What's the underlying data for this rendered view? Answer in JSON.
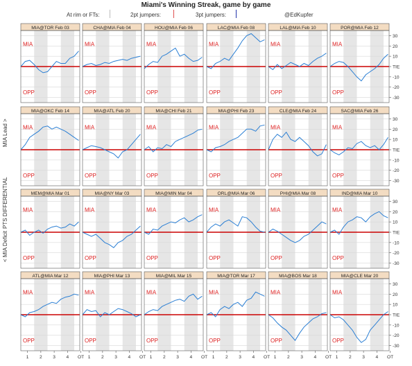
{
  "header": {
    "title": "Miami's Winning Streak, game by game",
    "legend": [
      {
        "label": "At rim or FTs:",
        "mark_color": "#bbbbbb"
      },
      {
        "label": "2pt jumpers:",
        "mark_color": "#e05050"
      },
      {
        "label": "3pt jumpers:",
        "mark_color": "#2233aa"
      }
    ],
    "credit": "@EdKupfer"
  },
  "ylabels": {
    "lead": "MIA Lead >",
    "differential": "PTS DIFFERENTIAL",
    "deficit": "< MIA Deficit"
  },
  "chart_data": {
    "type": "line",
    "panel_labels": {
      "team": "MIA",
      "opponent": "OPP",
      "tie": "TIE"
    },
    "y_ticks": [
      30,
      20,
      10,
      0,
      -10,
      -20,
      -30
    ],
    "y_tick_labels": [
      "30",
      "20",
      "10",
      "TIE",
      "-10",
      "-20",
      "-30"
    ],
    "x_tick_labels": [
      "1",
      "2",
      "3",
      "4",
      "OT"
    ],
    "ylim": [
      -35,
      35
    ],
    "xlim": [
      0,
      53
    ],
    "line_color": "#2b7fd4",
    "tie_line_color": "#cc0000",
    "shaded_quarters": [
      2,
      4
    ],
    "games": [
      {
        "title": "MIA@TOR Feb 03",
        "x": [
          0,
          4,
          8,
          12,
          16,
          20,
          24,
          28,
          32,
          36,
          40,
          44,
          48,
          52
        ],
        "y": [
          0,
          5,
          6,
          2,
          -3,
          -6,
          -5,
          0,
          5,
          3,
          3,
          8,
          10,
          15
        ]
      },
      {
        "title": "CHA@MIA Feb 04",
        "x": [
          0,
          4,
          8,
          12,
          16,
          20,
          24,
          28,
          32,
          36,
          40,
          44,
          48,
          52
        ],
        "y": [
          0,
          2,
          3,
          1,
          2,
          4,
          3,
          5,
          6,
          7,
          6,
          8,
          9,
          10
        ]
      },
      {
        "title": "HOU@MIA Feb 06",
        "x": [
          0,
          4,
          8,
          12,
          16,
          20,
          24,
          28,
          32,
          36,
          40,
          44,
          48,
          52
        ],
        "y": [
          -2,
          2,
          5,
          4,
          10,
          12,
          15,
          18,
          10,
          12,
          8,
          5,
          6,
          9
        ]
      },
      {
        "title": "LAC@MIA Feb 08",
        "x": [
          0,
          4,
          8,
          12,
          16,
          20,
          24,
          28,
          32,
          36,
          40,
          44,
          48,
          52
        ],
        "y": [
          0,
          -2,
          3,
          5,
          8,
          6,
          12,
          18,
          25,
          30,
          32,
          28,
          24,
          26
        ]
      },
      {
        "title": "LAL@MIA Feb 10",
        "x": [
          0,
          4,
          8,
          12,
          16,
          20,
          24,
          28,
          32,
          36,
          40,
          44,
          48,
          52
        ],
        "y": [
          0,
          -3,
          2,
          -2,
          1,
          4,
          2,
          0,
          3,
          1,
          5,
          8,
          10,
          13
        ]
      },
      {
        "title": "POR@MIA Feb 12",
        "x": [
          0,
          4,
          8,
          12,
          16,
          20,
          24,
          28,
          32,
          36,
          40,
          44,
          48,
          52
        ],
        "y": [
          0,
          3,
          5,
          4,
          0,
          -5,
          -10,
          -14,
          -8,
          -5,
          -2,
          2,
          8,
          12
        ]
      },
      {
        "title": "MIA@OKC Feb 14",
        "x": [
          0,
          4,
          8,
          12,
          16,
          20,
          24,
          28,
          32,
          36,
          40,
          44,
          48,
          52
        ],
        "y": [
          0,
          5,
          12,
          15,
          18,
          22,
          23,
          20,
          22,
          20,
          18,
          15,
          12,
          9
        ]
      },
      {
        "title": "MIA@ATL Feb 20",
        "x": [
          0,
          4,
          8,
          12,
          16,
          20,
          24,
          28,
          32,
          36,
          40,
          44,
          48,
          52
        ],
        "y": [
          0,
          2,
          4,
          3,
          2,
          0,
          -2,
          -4,
          -8,
          -2,
          0,
          5,
          10,
          15
        ]
      },
      {
        "title": "MIA@CHI Feb 21",
        "x": [
          0,
          4,
          8,
          12,
          16,
          20,
          24,
          28,
          32,
          36,
          40,
          44,
          48,
          52
        ],
        "y": [
          0,
          3,
          -2,
          2,
          1,
          5,
          3,
          8,
          10,
          12,
          14,
          16,
          19,
          20
        ]
      },
      {
        "title": "MIA@PHI Feb 23",
        "x": [
          0,
          4,
          8,
          12,
          16,
          20,
          24,
          28,
          32,
          36,
          40,
          44,
          48,
          52
        ],
        "y": [
          0,
          -2,
          2,
          3,
          5,
          8,
          10,
          12,
          16,
          20,
          20,
          18,
          23,
          24
        ]
      },
      {
        "title": "CLE@MIA Feb 24",
        "x": [
          0,
          4,
          8,
          12,
          16,
          20,
          24,
          28,
          32,
          36,
          40,
          44,
          48,
          52
        ],
        "y": [
          0,
          10,
          15,
          12,
          17,
          10,
          8,
          12,
          8,
          4,
          -2,
          -6,
          -4,
          5
        ]
      },
      {
        "title": "SAC@MIA Feb 26",
        "x": [
          0,
          4,
          8,
          12,
          16,
          20,
          24,
          28,
          32,
          36,
          40,
          44,
          48,
          52
        ],
        "y": [
          0,
          -3,
          -5,
          -2,
          2,
          1,
          6,
          8,
          4,
          2,
          4,
          0,
          5,
          12
        ]
      },
      {
        "title": "MEM@MIA Mar 01",
        "x": [
          0,
          4,
          8,
          12,
          16,
          20,
          24,
          28,
          32,
          36,
          40,
          44,
          48,
          52
        ],
        "y": [
          0,
          2,
          -3,
          0,
          2,
          -1,
          3,
          5,
          6,
          4,
          5,
          8,
          6,
          10
        ]
      },
      {
        "title": "MIA@NY Mar 03",
        "x": [
          0,
          4,
          8,
          12,
          16,
          20,
          24,
          28,
          32,
          36,
          40,
          44,
          48,
          52
        ],
        "y": [
          0,
          -2,
          -4,
          -2,
          -6,
          -10,
          -12,
          -15,
          -10,
          -8,
          -4,
          -2,
          2,
          6
        ]
      },
      {
        "title": "MIA@MIN Mar 04",
        "x": [
          0,
          4,
          8,
          12,
          16,
          20,
          24,
          28,
          32,
          36,
          40,
          44,
          48,
          52
        ],
        "y": [
          0,
          -2,
          3,
          2,
          6,
          8,
          10,
          9,
          12,
          14,
          10,
          12,
          15,
          17
        ]
      },
      {
        "title": "ORL@MIA Mar 06",
        "x": [
          0,
          4,
          8,
          12,
          16,
          20,
          24,
          28,
          32,
          36,
          40,
          44,
          48,
          52
        ],
        "y": [
          0,
          5,
          8,
          6,
          10,
          12,
          9,
          6,
          15,
          14,
          10,
          5,
          1,
          0
        ]
      },
      {
        "title": "PHI@MIA Mar 08",
        "x": [
          0,
          4,
          8,
          12,
          16,
          20,
          24,
          28,
          32,
          36,
          40,
          44,
          48,
          52
        ],
        "y": [
          0,
          3,
          1,
          -2,
          -5,
          -8,
          -10,
          -8,
          -4,
          -2,
          2,
          6,
          10,
          8
        ]
      },
      {
        "title": "IND@MIA Mar 10",
        "x": [
          0,
          4,
          8,
          12,
          16,
          20,
          24,
          28,
          32,
          36,
          40,
          44,
          48,
          52
        ],
        "y": [
          0,
          2,
          -2,
          5,
          10,
          12,
          15,
          14,
          10,
          15,
          18,
          20,
          16,
          14
        ]
      },
      {
        "title": "ATL@MIA Mar 12",
        "x": [
          0,
          4,
          8,
          12,
          16,
          20,
          24,
          28,
          32,
          36,
          40,
          44,
          48,
          52
        ],
        "y": [
          0,
          -2,
          2,
          3,
          5,
          8,
          10,
          12,
          11,
          15,
          17,
          18,
          20,
          19
        ]
      },
      {
        "title": "MIA@PHI Mar 13",
        "x": [
          0,
          4,
          8,
          12,
          16,
          20,
          24,
          28,
          32,
          36,
          40,
          44,
          48,
          52
        ],
        "y": [
          0,
          5,
          3,
          4,
          -2,
          2,
          0,
          3,
          6,
          5,
          3,
          1,
          -2,
          0
        ]
      },
      {
        "title": "MIA@MIL Mar 15",
        "x": [
          0,
          4,
          8,
          12,
          16,
          20,
          24,
          28,
          32,
          36,
          40,
          44,
          48,
          52
        ],
        "y": [
          0,
          3,
          5,
          4,
          8,
          10,
          12,
          14,
          15,
          13,
          18,
          20,
          15,
          18
        ]
      },
      {
        "title": "MIA@TOR Mar 17",
        "x": [
          0,
          4,
          8,
          12,
          16,
          20,
          24,
          28,
          32,
          36,
          40,
          44,
          48,
          52
        ],
        "y": [
          0,
          2,
          -2,
          5,
          8,
          6,
          10,
          12,
          8,
          14,
          16,
          22,
          20,
          18
        ]
      },
      {
        "title": "MIA@BOS Mar 18",
        "x": [
          0,
          4,
          8,
          12,
          16,
          20,
          24,
          28,
          32,
          36,
          40,
          44,
          48,
          52
        ],
        "y": [
          0,
          -3,
          -8,
          -12,
          -15,
          -20,
          -25,
          -18,
          -12,
          -8,
          -4,
          -2,
          1,
          2
        ]
      },
      {
        "title": "MIA@CLE Mar 20",
        "x": [
          0,
          4,
          8,
          12,
          16,
          20,
          24,
          28,
          32,
          36,
          40,
          44,
          48,
          52
        ],
        "y": [
          0,
          -3,
          -2,
          -5,
          -10,
          -15,
          -22,
          -27,
          -24,
          -15,
          -10,
          -5,
          0,
          3
        ]
      }
    ]
  }
}
